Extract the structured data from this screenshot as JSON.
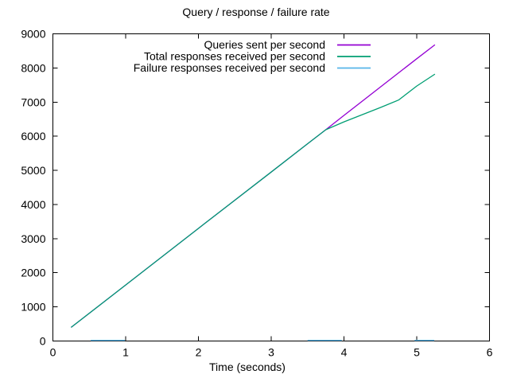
{
  "window": {
    "background": "#ffffff",
    "text_color": "#000000"
  },
  "chart_data": {
    "type": "line",
    "title": "Query / response / failure rate",
    "xlabel": "Time (seconds)",
    "ylabel": "",
    "xlim": [
      0,
      6
    ],
    "ylim": [
      0,
      9000
    ],
    "x_ticks": [
      0,
      1,
      2,
      3,
      4,
      5,
      6
    ],
    "y_ticks": [
      0,
      1000,
      2000,
      3000,
      4000,
      5000,
      6000,
      7000,
      8000,
      9000
    ],
    "grid": false,
    "legend_position": "top-center-inside",
    "series": [
      {
        "name": "Queries sent per second",
        "color": "#9400d3",
        "points": [
          [
            0.25,
            400
          ],
          [
            1.0,
            1640
          ],
          [
            2.0,
            3300
          ],
          [
            3.0,
            4950
          ],
          [
            3.5,
            5780
          ],
          [
            3.75,
            6190
          ],
          [
            4.0,
            6610
          ],
          [
            4.5,
            7440
          ],
          [
            5.0,
            8270
          ],
          [
            5.25,
            8680
          ]
        ]
      },
      {
        "name": "Total responses received per second",
        "color": "#009e73",
        "points": [
          [
            0.25,
            400
          ],
          [
            1.0,
            1640
          ],
          [
            2.0,
            3300
          ],
          [
            3.0,
            4950
          ],
          [
            3.5,
            5780
          ],
          [
            3.75,
            6190
          ],
          [
            4.0,
            6420
          ],
          [
            4.25,
            6630
          ],
          [
            4.5,
            6840
          ],
          [
            4.75,
            7060
          ],
          [
            5.0,
            7470
          ],
          [
            5.25,
            7820
          ]
        ]
      },
      {
        "name": "Failure responses received per second",
        "color": "#56b4e9",
        "segments": [
          [
            [
              0.52,
              20
            ],
            [
              0.99,
              20
            ]
          ],
          [
            [
              3.5,
              20
            ],
            [
              3.97,
              20
            ]
          ],
          [
            [
              4.97,
              20
            ],
            [
              5.24,
              20
            ]
          ]
        ]
      }
    ]
  }
}
